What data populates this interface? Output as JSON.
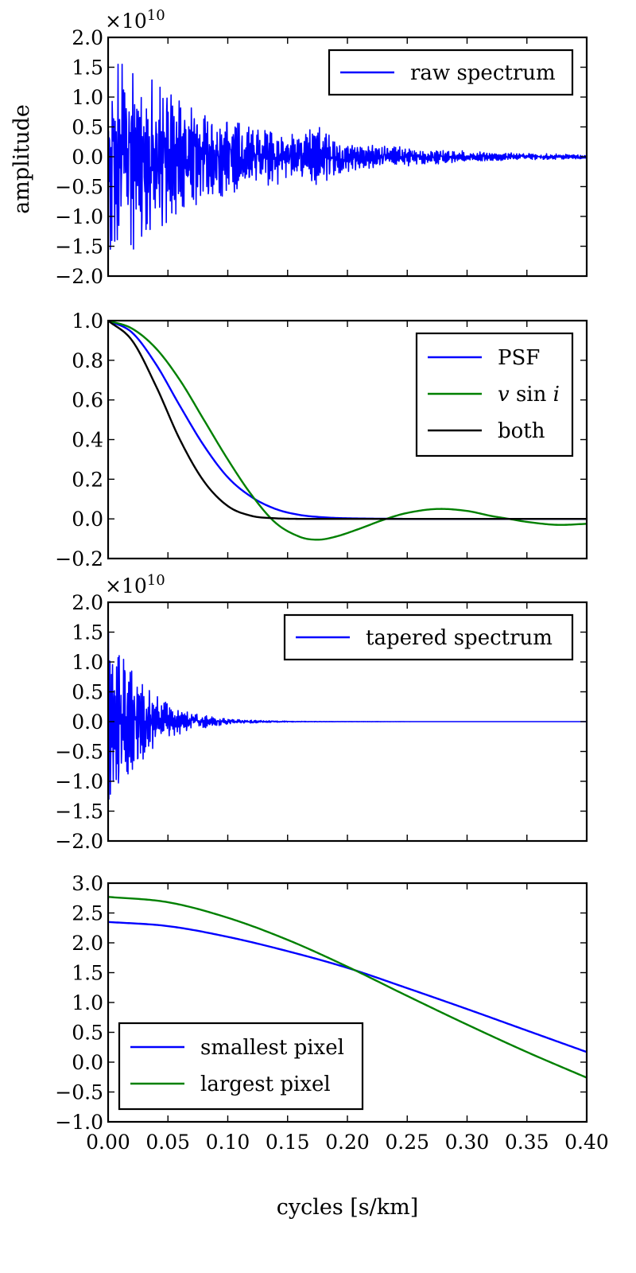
{
  "chart_data": [
    {
      "type": "line",
      "title": "",
      "xlabel": "",
      "ylabel": "amplitude",
      "y_exponent": "×10",
      "y_exponent_power": "10",
      "xlim": [
        0,
        0.4
      ],
      "ylim": [
        -2.0,
        2.0
      ],
      "yticks": [
        -2.0,
        -1.5,
        -1.0,
        -0.5,
        0.0,
        0.5,
        1.0,
        1.5,
        2.0
      ],
      "ytick_labels": [
        "−2.0",
        "−1.5",
        "−1.0",
        "−0.5",
        "0.0",
        "0.5",
        "1.0",
        "1.5",
        "2.0"
      ],
      "legend_position": "top-right",
      "series": [
        {
          "name": "raw spectrum",
          "color": "#0000ff",
          "kind": "oscillating-noise",
          "envelope_peak": 1.55,
          "envelope_scale": 0.095,
          "envelope_floor": 0.03,
          "secondary_bump_x": 0.175,
          "secondary_bump": 0.15
        }
      ]
    },
    {
      "type": "line",
      "title": "",
      "xlabel": "",
      "ylabel": "",
      "xlim": [
        0,
        0.4
      ],
      "ylim": [
        -0.2,
        1.0
      ],
      "yticks": [
        -0.2,
        0.0,
        0.2,
        0.4,
        0.6,
        0.8,
        1.0
      ],
      "ytick_labels": [
        "−0.2",
        "0.0",
        "0.2",
        "0.4",
        "0.6",
        "0.8",
        "1.0"
      ],
      "legend_position": "top-right",
      "series": [
        {
          "name": "PSF",
          "color": "#0000ff",
          "x": [
            0,
            0.02,
            0.04,
            0.06,
            0.08,
            0.1,
            0.12,
            0.14,
            0.16,
            0.18,
            0.2,
            0.25,
            0.3,
            0.35,
            0.4
          ],
          "y": [
            1.0,
            0.94,
            0.78,
            0.57,
            0.37,
            0.21,
            0.11,
            0.05,
            0.02,
            0.008,
            0.003,
            0.0,
            0.0,
            0.0,
            0.0
          ]
        },
        {
          "name": "v sin i",
          "name_parts": [
            "v",
            " sin ",
            "i"
          ],
          "color": "#008000",
          "x": [
            0,
            0.02,
            0.04,
            0.06,
            0.08,
            0.1,
            0.12,
            0.14,
            0.16,
            0.175,
            0.19,
            0.21,
            0.23,
            0.25,
            0.275,
            0.3,
            0.32,
            0.335,
            0.35,
            0.375,
            0.4
          ],
          "y": [
            1.0,
            0.96,
            0.86,
            0.7,
            0.5,
            0.3,
            0.12,
            -0.02,
            -0.09,
            -0.105,
            -0.09,
            -0.05,
            -0.005,
            0.03,
            0.05,
            0.04,
            0.015,
            0.0,
            -0.015,
            -0.03,
            -0.025
          ]
        },
        {
          "name": "both",
          "color": "#000000",
          "x": [
            0,
            0.02,
            0.04,
            0.06,
            0.08,
            0.1,
            0.12,
            0.14,
            0.16,
            0.18,
            0.2,
            0.25,
            0.3,
            0.35,
            0.4
          ],
          "y": [
            1.0,
            0.9,
            0.67,
            0.4,
            0.19,
            0.065,
            0.015,
            0.003,
            0.0,
            0.0,
            0.0,
            0.0,
            0.0,
            0.0,
            0.0
          ]
        }
      ]
    },
    {
      "type": "line",
      "title": "",
      "xlabel": "",
      "ylabel": "",
      "y_exponent": "×10",
      "y_exponent_power": "10",
      "xlim": [
        0,
        0.4
      ],
      "ylim": [
        -2.0,
        2.0
      ],
      "yticks": [
        -2.0,
        -1.5,
        -1.0,
        -0.5,
        0.0,
        0.5,
        1.0,
        1.5,
        2.0
      ],
      "ytick_labels": [
        "−2.0",
        "−1.5",
        "−1.0",
        "−0.5",
        "0.0",
        "0.5",
        "1.0",
        "1.5",
        "2.0"
      ],
      "legend_position": "top-right",
      "series": [
        {
          "name": "tapered spectrum",
          "color": "#0000ff",
          "kind": "oscillating-noise",
          "envelope_peak": 1.5,
          "envelope_scale": 0.028,
          "envelope_floor": 0.0,
          "secondary_bump_x": 0.06,
          "secondary_bump": 0.0
        }
      ]
    },
    {
      "type": "line",
      "title": "",
      "xlabel": "cycles [s/km]",
      "ylabel": "",
      "xlim": [
        0,
        0.4
      ],
      "ylim": [
        -1.0,
        3.0
      ],
      "yticks": [
        -1.0,
        -0.5,
        0.0,
        0.5,
        1.0,
        1.5,
        2.0,
        2.5,
        3.0
      ],
      "ytick_labels": [
        "−1.0",
        "−0.5",
        "0.0",
        "0.5",
        "1.0",
        "1.5",
        "2.0",
        "2.5",
        "3.0"
      ],
      "xticks": [
        0.0,
        0.05,
        0.1,
        0.15,
        0.2,
        0.25,
        0.3,
        0.35,
        0.4
      ],
      "xtick_labels": [
        "0.00",
        "0.05",
        "0.10",
        "0.15",
        "0.20",
        "0.25",
        "0.30",
        "0.35",
        "0.40"
      ],
      "legend_position": "bottom-left",
      "series": [
        {
          "name": "smallest pixel",
          "color": "#0000ff",
          "x": [
            0,
            0.05,
            0.1,
            0.15,
            0.2,
            0.25,
            0.3,
            0.35,
            0.4
          ],
          "y": [
            2.35,
            2.28,
            2.1,
            1.86,
            1.58,
            1.24,
            0.89,
            0.53,
            0.17
          ]
        },
        {
          "name": "largest pixel",
          "color": "#008000",
          "x": [
            0,
            0.05,
            0.1,
            0.15,
            0.2,
            0.25,
            0.3,
            0.35,
            0.4
          ],
          "y": [
            2.77,
            2.68,
            2.42,
            2.05,
            1.6,
            1.11,
            0.63,
            0.17,
            -0.26
          ]
        }
      ]
    }
  ]
}
